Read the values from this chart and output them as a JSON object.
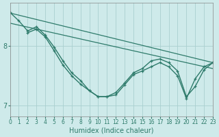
{
  "background_color": "#ceeaea",
  "grid_color": "#aacfcf",
  "line_color": "#2d7a6a",
  "xlabel": "Humidex (Indice chaleur)",
  "xlim": [
    0,
    23
  ],
  "ylim": [
    6.82,
    8.72
  ],
  "yticks": [
    7,
    8
  ],
  "xticks": [
    0,
    1,
    2,
    3,
    4,
    5,
    6,
    7,
    8,
    9,
    10,
    11,
    12,
    13,
    14,
    15,
    16,
    17,
    18,
    19,
    20,
    21,
    22,
    23
  ],
  "series": [
    {
      "x": [
        0,
        23
      ],
      "y": [
        8.55,
        7.72
      ],
      "marker": false,
      "linewidth": 0.9
    },
    {
      "x": [
        0,
        23
      ],
      "y": [
        8.38,
        7.62
      ],
      "marker": false,
      "linewidth": 0.9
    },
    {
      "x": [
        0,
        1,
        2,
        3,
        4,
        5,
        6,
        7,
        8,
        9,
        10,
        11,
        12,
        13,
        14,
        15,
        16,
        17,
        18,
        19,
        20,
        21,
        22,
        23
      ],
      "y": [
        8.56,
        8.42,
        8.25,
        8.32,
        8.18,
        7.98,
        7.75,
        7.55,
        7.42,
        7.25,
        7.15,
        7.15,
        7.22,
        7.38,
        7.55,
        7.62,
        7.75,
        7.78,
        7.72,
        7.58,
        7.15,
        7.32,
        7.6,
        7.72
      ],
      "marker": true,
      "linewidth": 1.0
    },
    {
      "x": [
        2,
        3,
        4,
        5,
        6,
        7,
        8,
        9,
        10,
        11,
        12,
        13,
        14,
        15,
        16,
        17,
        18,
        19,
        20,
        21,
        22,
        23
      ],
      "y": [
        8.22,
        8.28,
        8.15,
        7.92,
        7.68,
        7.5,
        7.36,
        7.25,
        7.15,
        7.15,
        7.18,
        7.35,
        7.52,
        7.58,
        7.65,
        7.72,
        7.65,
        7.5,
        7.12,
        7.45,
        7.65,
        7.72
      ],
      "marker": true,
      "linewidth": 1.0
    }
  ]
}
